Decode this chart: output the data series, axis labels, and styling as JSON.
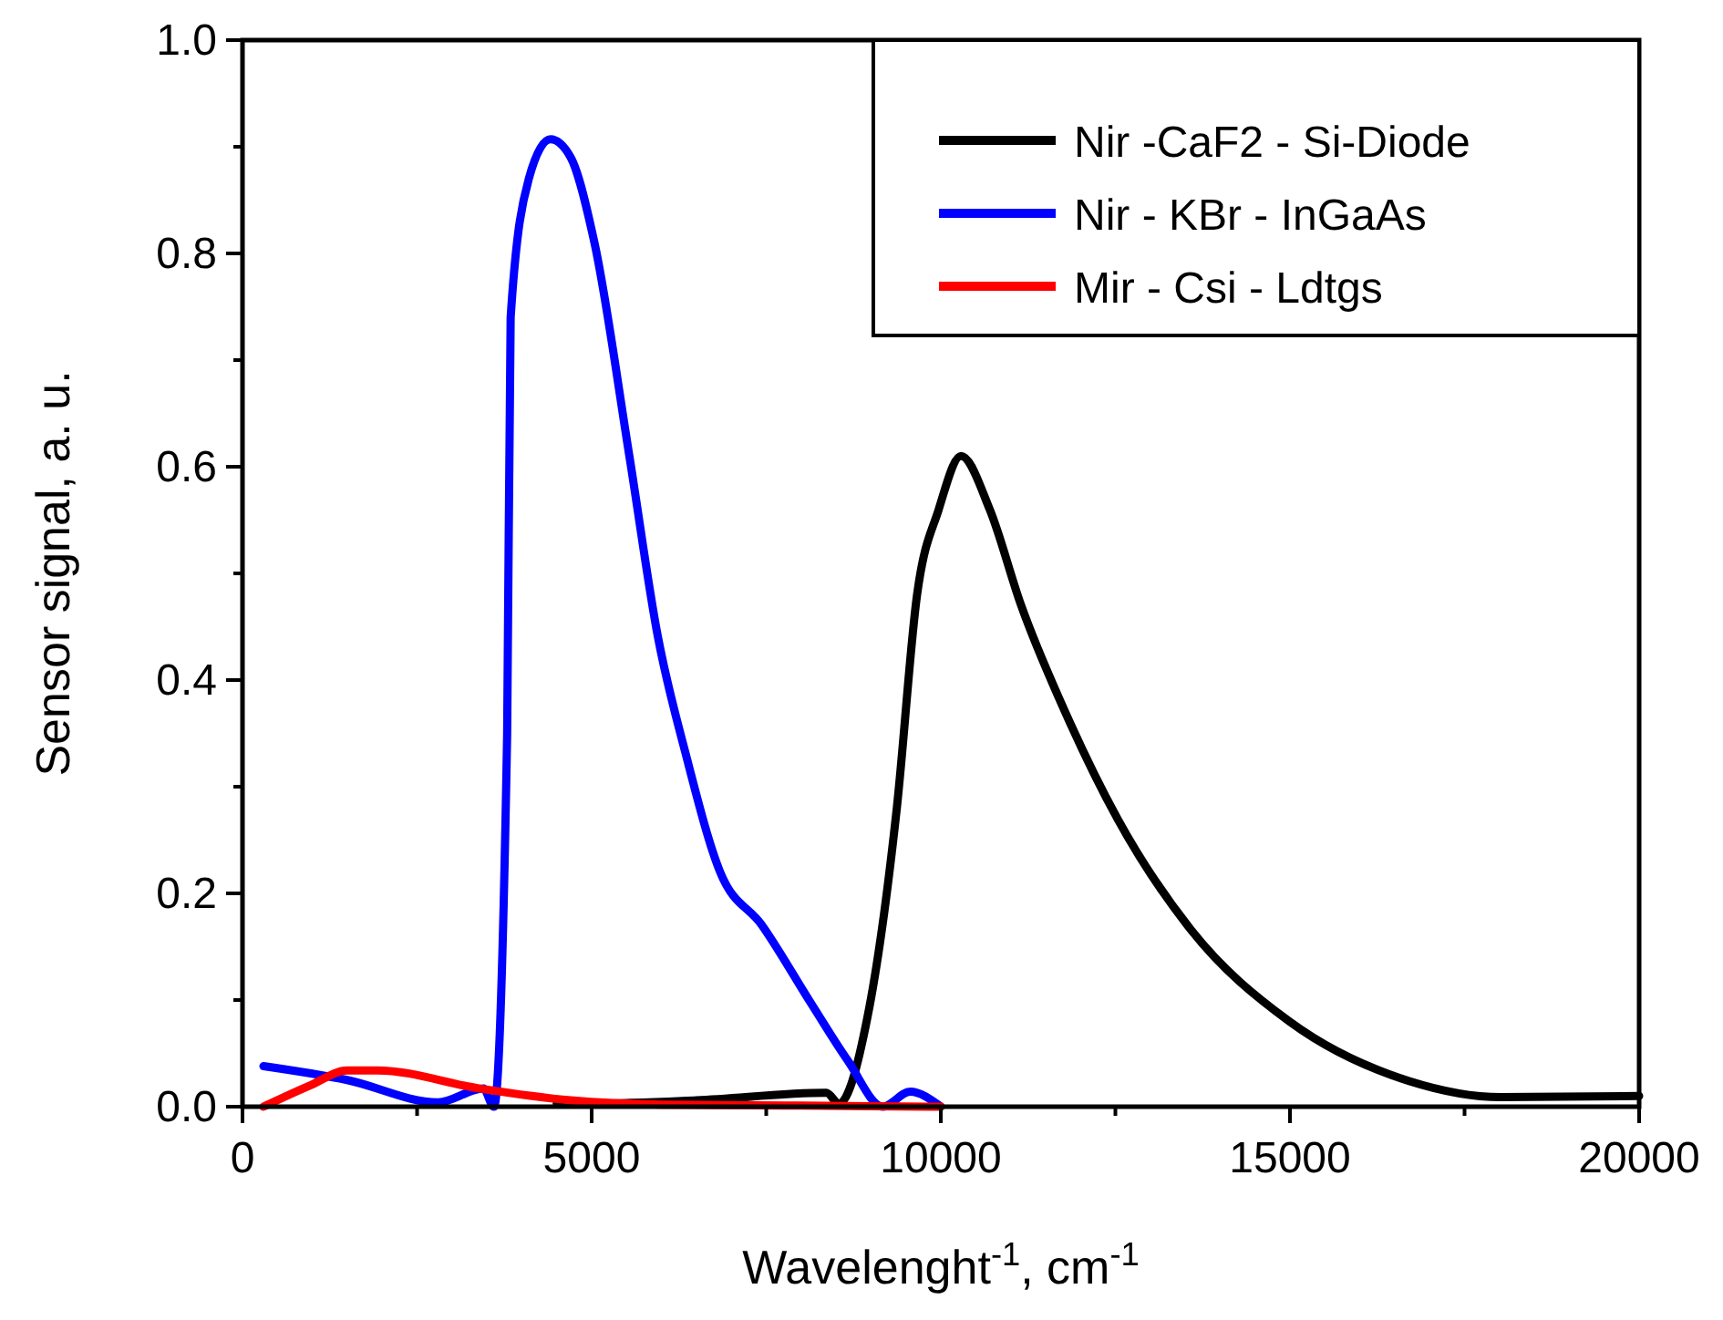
{
  "chart_data": {
    "type": "line",
    "xlabel": "Wavelenght$^{-1}$, cm$^{-1}$",
    "ylabel": "Sensor signal, a. u.",
    "xlim": [
      0,
      20000
    ],
    "ylim": [
      0,
      1
    ],
    "xticks": [
      0,
      {
        "value": 2500,
        "label": null
      },
      5000,
      {
        "value": 7500,
        "label": null
      },
      10000,
      {
        "value": 12500,
        "label": null
      },
      15000,
      {
        "value": 17500,
        "label": null
      },
      20000
    ],
    "yticks": [
      {
        "value": 0,
        "label": "0.0"
      },
      {
        "value": 0.1,
        "label": null
      },
      {
        "value": 0.2,
        "label": "0.2"
      },
      {
        "value": 0.3,
        "label": null
      },
      {
        "value": 0.4,
        "label": "0.4"
      },
      {
        "value": 0.5,
        "label": null
      },
      {
        "value": 0.6,
        "label": "0.6"
      },
      {
        "value": 0.7,
        "label": null
      },
      {
        "value": 0.8,
        "label": "0.8"
      },
      {
        "value": 0.9,
        "label": null
      },
      {
        "value": 1,
        "label": "1.0"
      }
    ],
    "grid": false,
    "legend": "top right",
    "marker": "none",
    "line_style": "solid",
    "series": [
      {
        "name": "Nir -CaF2 - Si-Diode",
        "color": "#000000",
        "x": [
          4500,
          5040,
          6500,
          8360,
          8540,
          8950,
          9370,
          9660,
          9970,
          10290,
          10700,
          11150,
          11850,
          12530,
          13580,
          14990,
          16710,
          18020,
          20000
        ],
        "values": [
          0.003,
          0.003,
          0.006,
          0.013,
          0.003,
          0.084,
          0.28,
          0.48,
          0.56,
          0.61,
          0.56,
          0.47,
          0.36,
          0.27,
          0.166,
          0.08,
          0.024,
          0.009,
          0.01
        ]
      },
      {
        "name": "Nir - KBr - InGaAs",
        "color": "#0000ff",
        "x": [
          300,
          1500,
          2800,
          3450,
          3600,
          3790,
          3840,
          4100,
          4410,
          4700,
          5040,
          5540,
          5950,
          6350,
          6840,
          7440,
          8150,
          8670,
          9170,
          9560,
          10000
        ],
        "values": [
          0.038,
          0.025,
          0.004,
          0.017,
          0.0,
          0.35,
          0.74,
          0.87,
          0.907,
          0.89,
          0.81,
          0.61,
          0.44,
          0.33,
          0.22,
          0.17,
          0.096,
          0.043,
          0.0,
          0.014,
          0.0
        ]
      },
      {
        "name": "Mir - Csi - Ldtgs",
        "color": "#ff0000",
        "x": [
          300,
          970,
          1500,
          1930,
          3400,
          4700,
          6000,
          8000,
          10000
        ],
        "values": [
          0.0,
          0.02,
          0.034,
          0.034,
          0.017,
          0.006,
          0.002,
          0.001,
          0.0
        ]
      }
    ]
  }
}
